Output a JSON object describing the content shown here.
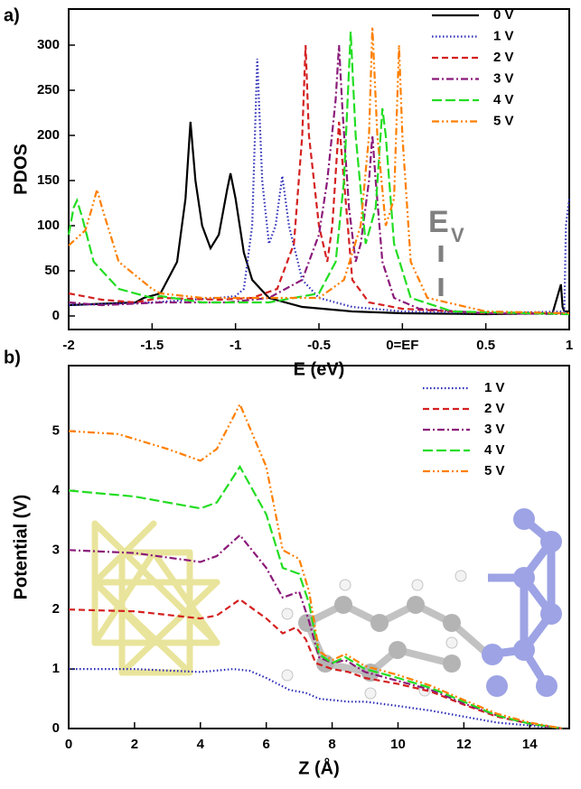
{
  "chart_data": [
    {
      "type": "line",
      "panel_label": "a)",
      "x_label": "E (eV)",
      "y_label": "PDOS",
      "xlim": [
        -2,
        1
      ],
      "ylim": [
        -15,
        340
      ],
      "xticks": [
        -2,
        -1.5,
        -1,
        -0.5,
        {
          "value": 0,
          "label": "0=EF"
        },
        0.5,
        1
      ],
      "yticks": [
        0,
        50,
        100,
        150,
        200,
        250,
        300
      ],
      "legend": "upper right",
      "annotation": {
        "text": "E",
        "subscript": "V"
      },
      "series": [
        {
          "name": "0 V",
          "color": "#000000",
          "style": "solid",
          "x": [
            -2,
            -1.6,
            -1.55,
            -1.45,
            -1.35,
            -1.3,
            -1.27,
            -1.24,
            -1.2,
            -1.15,
            -1.1,
            -1.05,
            -1.03,
            -1.0,
            -0.95,
            -0.9,
            -0.8,
            -0.6,
            -0.3,
            0,
            0.5,
            0.9,
            0.95,
            0.96,
            0.97,
            1.0
          ],
          "values": [
            12,
            15,
            20,
            25,
            60,
            130,
            215,
            150,
            100,
            75,
            90,
            140,
            158,
            130,
            70,
            40,
            20,
            10,
            5,
            3,
            2,
            3,
            35,
            10,
            5,
            5
          ]
        },
        {
          "name": "1 V",
          "color": "#2b2bb8",
          "style": "dotted",
          "x": [
            -2,
            -1.5,
            -1.1,
            -1.0,
            -0.95,
            -0.9,
            -0.87,
            -0.84,
            -0.8,
            -0.76,
            -0.72,
            -0.68,
            -0.6,
            -0.5,
            -0.3,
            0,
            0.5,
            0.97,
            0.98,
            1.0
          ],
          "values": [
            12,
            15,
            20,
            22,
            30,
            100,
            285,
            150,
            80,
            100,
            155,
            100,
            40,
            20,
            10,
            5,
            3,
            5,
            100,
            130
          ]
        },
        {
          "name": "2 V",
          "color": "#d42020",
          "style": "dashed",
          "x": [
            -2,
            -1.8,
            -1.6,
            -1.45,
            -1.1,
            -0.9,
            -0.75,
            -0.65,
            -0.6,
            -0.58,
            -0.56,
            -0.5,
            -0.45,
            -0.42,
            -0.38,
            -0.35,
            -0.3,
            -0.2,
            0,
            0.5,
            1
          ],
          "values": [
            25,
            18,
            15,
            20,
            18,
            20,
            30,
            80,
            200,
            300,
            200,
            100,
            60,
            100,
            215,
            150,
            40,
            15,
            8,
            3,
            3
          ]
        },
        {
          "name": "3 V",
          "color": "#8b1a7a",
          "style": "dashdot",
          "x": [
            -2,
            -1.8,
            -1.45,
            -1.05,
            -0.8,
            -0.6,
            -0.5,
            -0.45,
            -0.4,
            -0.38,
            -0.36,
            -0.32,
            -0.28,
            -0.25,
            -0.2,
            -0.18,
            -0.16,
            -0.12,
            -0.05,
            0.1,
            0.5,
            1
          ],
          "values": [
            15,
            12,
            15,
            15,
            20,
            40,
            90,
            150,
            240,
            300,
            230,
            120,
            60,
            80,
            150,
            200,
            150,
            60,
            20,
            8,
            3,
            2
          ]
        },
        {
          "name": "4 V",
          "color": "#22dd22",
          "style": "longdash",
          "x": [
            -2,
            -1.97,
            -1.95,
            -1.92,
            -1.85,
            -1.7,
            -1.5,
            -1.45,
            -1.2,
            -0.8,
            -0.5,
            -0.4,
            -0.35,
            -0.31,
            -0.28,
            -0.22,
            -0.16,
            -0.12,
            -0.1,
            -0.05,
            0.05,
            0.3,
            1
          ],
          "values": [
            90,
            120,
            128,
            110,
            60,
            30,
            20,
            22,
            15,
            15,
            25,
            60,
            150,
            315,
            200,
            80,
            120,
            230,
            200,
            80,
            20,
            5,
            2
          ]
        },
        {
          "name": "5 V",
          "color": "#ff7f00",
          "style": "dashdotdot",
          "x": [
            -2,
            -1.9,
            -1.86,
            -1.83,
            -1.8,
            -1.7,
            -1.5,
            -1.45,
            -1.2,
            -0.8,
            -0.5,
            -0.35,
            -0.25,
            -0.2,
            -0.18,
            -0.15,
            -0.1,
            -0.05,
            -0.02,
            0.0,
            0.05,
            0.15,
            0.5,
            1
          ],
          "values": [
            78,
            95,
            120,
            140,
            120,
            60,
            30,
            25,
            20,
            20,
            20,
            40,
            100,
            200,
            320,
            200,
            100,
            130,
            300,
            200,
            60,
            20,
            5,
            3
          ]
        }
      ]
    },
    {
      "type": "line",
      "panel_label": "b)",
      "x_label": "Z (Å)",
      "y_label": "Potential (V)",
      "xlim": [
        0,
        15.2
      ],
      "ylim": [
        0,
        6.1
      ],
      "xticks": [
        0,
        2,
        4,
        6,
        8,
        10,
        12,
        14
      ],
      "yticks": [
        0,
        1,
        2,
        3,
        4,
        5
      ],
      "legend": "upper right",
      "series": [
        {
          "name": "1 V",
          "color": "#2b2bb8",
          "style": "dotted",
          "x": [
            0,
            2,
            4,
            5,
            5.5,
            6,
            6.7,
            7.2,
            7.6,
            8.5,
            9,
            10,
            11,
            12,
            13,
            14,
            15
          ],
          "values": [
            1.0,
            1.0,
            0.95,
            1.0,
            0.97,
            0.85,
            0.65,
            0.6,
            0.5,
            0.45,
            0.45,
            0.38,
            0.3,
            0.2,
            0.1,
            0.05,
            0
          ]
        },
        {
          "name": "2 V",
          "color": "#d42020",
          "style": "dashed",
          "x": [
            0,
            2,
            4,
            4.5,
            5.2,
            6,
            6.5,
            6.9,
            7.2,
            7.5,
            8,
            8.5,
            9,
            10,
            11,
            12,
            13,
            14,
            15
          ],
          "values": [
            2.0,
            1.97,
            1.85,
            1.9,
            2.17,
            1.85,
            1.6,
            1.7,
            1.5,
            1.1,
            1.0,
            0.95,
            0.85,
            0.75,
            0.62,
            0.4,
            0.2,
            0.08,
            0
          ]
        },
        {
          "name": "3 V",
          "color": "#8b1a7a",
          "style": "dashdot",
          "x": [
            0,
            2,
            4,
            4.5,
            5.2,
            6,
            6.5,
            7,
            7.3,
            7.6,
            8,
            8.4,
            9,
            10,
            11,
            12,
            13,
            14,
            15
          ],
          "values": [
            3.0,
            2.95,
            2.8,
            2.9,
            3.25,
            2.7,
            2.2,
            2.3,
            1.8,
            1.2,
            1.1,
            1.15,
            0.95,
            0.8,
            0.65,
            0.42,
            0.22,
            0.08,
            0
          ]
        },
        {
          "name": "4 V",
          "color": "#22dd22",
          "style": "longdash",
          "x": [
            0,
            2,
            4,
            4.5,
            5.2,
            6,
            6.5,
            7,
            7.3,
            7.6,
            8,
            8.4,
            9,
            10,
            11,
            12,
            13,
            14,
            15
          ],
          "values": [
            4.0,
            3.9,
            3.7,
            3.8,
            4.4,
            3.6,
            2.7,
            2.6,
            2.1,
            1.25,
            1.1,
            1.2,
            1.0,
            0.85,
            0.68,
            0.45,
            0.22,
            0.08,
            0
          ]
        },
        {
          "name": "5 V",
          "color": "#ff7f00",
          "style": "dashdotdot",
          "x": [
            0,
            1.5,
            3,
            4,
            4.5,
            5.2,
            6,
            6.5,
            7,
            7.3,
            7.6,
            8,
            8.4,
            9,
            10,
            11,
            12,
            13,
            14,
            15
          ],
          "values": [
            5.0,
            4.95,
            4.7,
            4.5,
            4.7,
            5.45,
            4.4,
            3.0,
            2.85,
            2.3,
            1.3,
            1.15,
            1.25,
            1.05,
            0.9,
            0.72,
            0.48,
            0.25,
            0.1,
            0
          ]
        }
      ]
    }
  ]
}
